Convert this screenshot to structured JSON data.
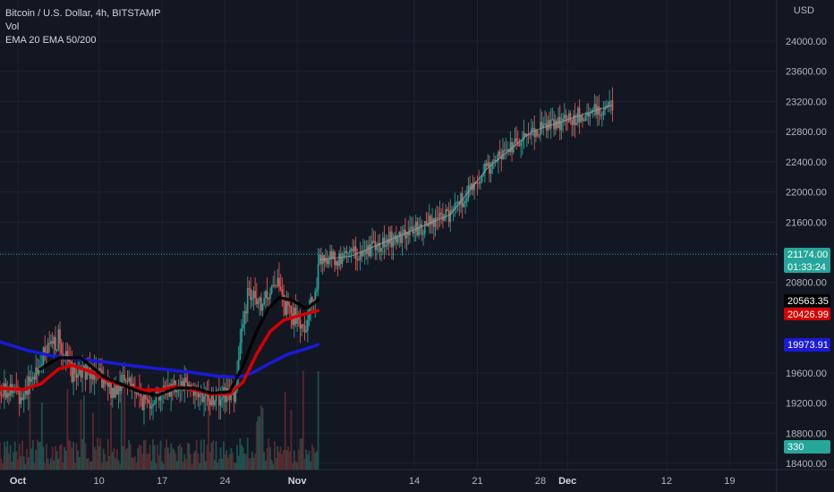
{
  "legend": {
    "symbol_line": "Bitcoin / U.S. Dollar, 4h, BITSTAMP",
    "vol_line": "Vol",
    "ema_line": "EMA 20 EMA 50/200"
  },
  "price_scale": {
    "currency": "USD"
  },
  "colors": {
    "background": "#131722",
    "up": "#26a69a",
    "down": "#ef5350",
    "ema20": "#000000",
    "ema50": "#d50000",
    "ema200": "#1a1ad8",
    "last_price": "#26a69a"
  },
  "badges": {
    "last_price": "21174.00",
    "countdown": "01:33:24",
    "ema20": "20563.35",
    "ema50": "20426.99",
    "ema200": "19973.91",
    "volume": "330"
  },
  "chart_data": {
    "type": "candlestick",
    "title": "Bitcoin / U.S. Dollar, 4h, BITSTAMP",
    "y_ticks": [
      24000,
      23600,
      23200,
      22800,
      22400,
      22000,
      21600,
      21200,
      20800,
      19600,
      19200,
      18800,
      18400
    ],
    "y_tick_labels": [
      "24000.00",
      "23600.00",
      "23200.00",
      "22800.00",
      "22400.00",
      "22000.00",
      "21600.00",
      "21200.00",
      "20800.00",
      "19600.00",
      "19200.00",
      "18800.00",
      "18400.00"
    ],
    "ylim": [
      18400,
      24000
    ],
    "x_ticks": [
      {
        "label": "Oct",
        "day": 1,
        "bold": true
      },
      {
        "label": "10",
        "day": 10,
        "bold": false
      },
      {
        "label": "17",
        "day": 17,
        "bold": false
      },
      {
        "label": "24",
        "day": 24,
        "bold": false
      },
      {
        "label": "Nov",
        "day": 32,
        "bold": true
      },
      {
        "label": "14",
        "day": 45,
        "bold": false
      },
      {
        "label": "21",
        "day": 52,
        "bold": false
      },
      {
        "label": "28",
        "day": 59,
        "bold": false
      },
      {
        "label": "Dec",
        "day": 62,
        "bold": true
      },
      {
        "label": "12",
        "day": 73,
        "bold": false
      },
      {
        "label": "19",
        "day": 80,
        "bold": false
      }
    ],
    "price_path": [
      {
        "day": -1.5,
        "price": 19450
      },
      {
        "day": 1.5,
        "price": 19300
      },
      {
        "day": 4.0,
        "price": 19850
      },
      {
        "day": 5.5,
        "price": 20050
      },
      {
        "day": 7.0,
        "price": 19600
      },
      {
        "day": 9.0,
        "price": 19650
      },
      {
        "day": 11.5,
        "price": 19350
      },
      {
        "day": 13.0,
        "price": 19550
      },
      {
        "day": 15.0,
        "price": 19200
      },
      {
        "day": 17.0,
        "price": 19350
      },
      {
        "day": 19.5,
        "price": 19500
      },
      {
        "day": 21.5,
        "price": 19250
      },
      {
        "day": 24.0,
        "price": 19300
      },
      {
        "day": 25.0,
        "price": 19350
      },
      {
        "day": 26.5,
        "price": 20650
      },
      {
        "day": 28.0,
        "price": 20450
      },
      {
        "day": 29.5,
        "price": 20850
      },
      {
        "day": 30.5,
        "price": 20500
      },
      {
        "day": 31.5,
        "price": 20350
      },
      {
        "day": 33.0,
        "price": 20250
      },
      {
        "day": 34.0,
        "price": 20700
      },
      {
        "day": 34.5,
        "price": 21100
      },
      {
        "day": 38.0,
        "price": 21150
      },
      {
        "day": 42.0,
        "price": 21350
      },
      {
        "day": 46.0,
        "price": 21550
      },
      {
        "day": 49.0,
        "price": 21700
      },
      {
        "day": 53.0,
        "price": 22300
      },
      {
        "day": 58.0,
        "price": 22800
      },
      {
        "day": 63.0,
        "price": 23000
      },
      {
        "day": 67.0,
        "price": 23150
      }
    ],
    "ema20": [
      {
        "day": 3.5,
        "price": 19650
      },
      {
        "day": 5.5,
        "price": 19800
      },
      {
        "day": 8.0,
        "price": 19800
      },
      {
        "day": 10.5,
        "price": 19550
      },
      {
        "day": 12.5,
        "price": 19450
      },
      {
        "day": 14.5,
        "price": 19350
      },
      {
        "day": 16.5,
        "price": 19300
      },
      {
        "day": 18.5,
        "price": 19400
      },
      {
        "day": 20.5,
        "price": 19400
      },
      {
        "day": 22.5,
        "price": 19330
      },
      {
        "day": 24.5,
        "price": 19350
      },
      {
        "day": 26.0,
        "price": 19700
      },
      {
        "day": 27.5,
        "price": 20150
      },
      {
        "day": 28.8,
        "price": 20450
      },
      {
        "day": 30.0,
        "price": 20600
      },
      {
        "day": 31.5,
        "price": 20560
      },
      {
        "day": 33.0,
        "price": 20450
      },
      {
        "day": 34.3,
        "price": 20563
      }
    ],
    "ema50": [
      {
        "day": -1.5,
        "price": 19400
      },
      {
        "day": 1.5,
        "price": 19380
      },
      {
        "day": 3.5,
        "price": 19450
      },
      {
        "day": 5.5,
        "price": 19650
      },
      {
        "day": 7.0,
        "price": 19700
      },
      {
        "day": 9.0,
        "price": 19620
      },
      {
        "day": 11.0,
        "price": 19500
      },
      {
        "day": 13.0,
        "price": 19420
      },
      {
        "day": 15.0,
        "price": 19370
      },
      {
        "day": 17.0,
        "price": 19380
      },
      {
        "day": 18.5,
        "price": 19420
      },
      {
        "day": 20.5,
        "price": 19380
      },
      {
        "day": 22.5,
        "price": 19320
      },
      {
        "day": 24.5,
        "price": 19320
      },
      {
        "day": 26.0,
        "price": 19480
      },
      {
        "day": 27.5,
        "price": 19850
      },
      {
        "day": 29.0,
        "price": 20150
      },
      {
        "day": 30.5,
        "price": 20300
      },
      {
        "day": 32.5,
        "price": 20370
      },
      {
        "day": 34.3,
        "price": 20427
      }
    ],
    "ema200": [
      {
        "day": -1.5,
        "price": 20030
      },
      {
        "day": 2.0,
        "price": 19900
      },
      {
        "day": 5.0,
        "price": 19820
      },
      {
        "day": 8.0,
        "price": 19780
      },
      {
        "day": 11.0,
        "price": 19740
      },
      {
        "day": 14.0,
        "price": 19690
      },
      {
        "day": 17.0,
        "price": 19650
      },
      {
        "day": 20.0,
        "price": 19610
      },
      {
        "day": 23.0,
        "price": 19560
      },
      {
        "day": 25.5,
        "price": 19540
      },
      {
        "day": 27.0,
        "price": 19600
      },
      {
        "day": 29.0,
        "price": 19730
      },
      {
        "day": 31.0,
        "price": 19850
      },
      {
        "day": 33.0,
        "price": 19920
      },
      {
        "day": 34.3,
        "price": 19974
      }
    ],
    "last_price": 21174.0,
    "grid": true
  }
}
